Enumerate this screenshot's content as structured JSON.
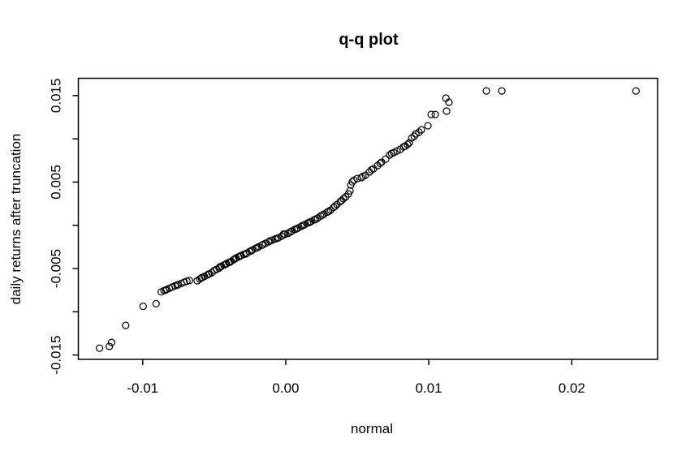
{
  "figure": {
    "background": "#ffffff",
    "foreground": "#000000"
  },
  "chart_data": {
    "type": "scatter",
    "title": "q-q plot",
    "xlabel": "normal",
    "ylabel": "daily returns after truncation",
    "xlim": [
      -0.0145,
      0.026
    ],
    "ylim": [
      -0.0155,
      0.017
    ],
    "grid": false,
    "marker": {
      "style": "open-circle",
      "stroke": "#000000",
      "fill": "none",
      "radius_px": 4
    },
    "x_ticks": [
      {
        "value": -0.01,
        "label": "-0.01"
      },
      {
        "value": 0.0,
        "label": "0.00"
      },
      {
        "value": 0.01,
        "label": "0.01"
      },
      {
        "value": 0.02,
        "label": "0.02"
      }
    ],
    "y_ticks": [
      {
        "value": 0.015,
        "label": "0.015"
      },
      {
        "value": 0.01,
        "label": ""
      },
      {
        "value": 0.005,
        "label": "0.005"
      },
      {
        "value": 0.0,
        "label": ""
      },
      {
        "value": -0.005,
        "label": "-0.005"
      },
      {
        "value": -0.01,
        "label": ""
      },
      {
        "value": -0.015,
        "label": "-0.015"
      }
    ],
    "points": [
      [
        -0.01302,
        -0.01421
      ],
      [
        -0.01233,
        -0.014
      ],
      [
        -0.01218,
        -0.01354
      ],
      [
        -0.01119,
        -0.01157
      ],
      [
        -0.00997,
        -0.00937
      ],
      [
        -0.00906,
        -0.00907
      ],
      [
        -0.0087,
        -0.0077
      ],
      [
        -0.00851,
        -0.00756
      ],
      [
        -0.00832,
        -0.00742
      ],
      [
        -0.00813,
        -0.00728
      ],
      [
        -0.00794,
        -0.00714
      ],
      [
        -0.00774,
        -0.007
      ],
      [
        -0.00752,
        -0.00686
      ],
      [
        -0.00731,
        -0.00672
      ],
      [
        -0.0071,
        -0.00658
      ],
      [
        -0.00691,
        -0.00647
      ],
      [
        -0.00673,
        -0.00639
      ],
      [
        -0.0084,
        -0.00748
      ],
      [
        -0.0076,
        -0.00692
      ],
      [
        -0.00619,
        -0.00641
      ],
      [
        -0.00601,
        -0.00621
      ],
      [
        -0.00585,
        -0.00604
      ],
      [
        -0.00569,
        -0.00591
      ],
      [
        -0.00551,
        -0.00576
      ],
      [
        -0.00534,
        -0.00561
      ],
      [
        -0.00517,
        -0.00547
      ],
      [
        -0.0059,
        -0.0061
      ],
      [
        -0.0054,
        -0.00565
      ],
      [
        -0.005,
        -0.00522
      ],
      [
        -0.00483,
        -0.00509
      ],
      [
        -0.00466,
        -0.00495
      ],
      [
        -0.00449,
        -0.00473
      ],
      [
        -0.00432,
        -0.00459
      ],
      [
        -0.00415,
        -0.00444
      ],
      [
        -0.00398,
        -0.0043
      ],
      [
        -0.00381,
        -0.00416
      ],
      [
        -0.00364,
        -0.00396
      ],
      [
        -0.00347,
        -0.00378
      ],
      [
        -0.0033,
        -0.00364
      ],
      [
        -0.00313,
        -0.0035
      ],
      [
        -0.00293,
        -0.00336
      ],
      [
        -0.00273,
        -0.00322
      ],
      [
        -0.00253,
        -0.00303
      ],
      [
        -0.00233,
        -0.00285
      ],
      [
        -0.0021,
        -0.00266
      ],
      [
        -0.00188,
        -0.00247
      ],
      [
        -0.00165,
        -0.00228
      ],
      [
        -0.00142,
        -0.00209
      ],
      [
        -0.0012,
        -0.00191
      ],
      [
        -0.00097,
        -0.00172
      ],
      [
        -0.00074,
        -0.00158
      ],
      [
        -0.00051,
        -0.00144
      ],
      [
        -0.00028,
        -0.00125
      ],
      [
        -6e-05,
        -0.00106
      ],
      [
        0.00017,
        -0.00092
      ],
      [
        0.0004,
        -0.00068
      ],
      [
        0.00062,
        -0.00049
      ],
      [
        0.00085,
        -0.00031
      ],
      [
        0.00108,
        -0.00012
      ],
      [
        0.00131,
        7e-05
      ],
      [
        0.00153,
        0.00026
      ],
      [
        0.00176,
        0.00044
      ],
      [
        0.00199,
        0.00063
      ],
      [
        0.00222,
        0.00082
      ],
      [
        0.00244,
        0.00106
      ],
      [
        0.00267,
        0.00129
      ],
      [
        0.0029,
        0.00152
      ],
      [
        0.00313,
        0.00175
      ],
      [
        0.00335,
        0.00208
      ],
      [
        0.00358,
        0.00241
      ],
      [
        0.00381,
        0.00274
      ],
      [
        0.00403,
        0.00307
      ],
      [
        0.0042,
        0.0033
      ],
      [
        0.00438,
        0.00363
      ],
      [
        0.00449,
        0.00399
      ],
      [
        0.00455,
        0.00466
      ],
      [
        0.00477,
        0.00522
      ],
      [
        0.005,
        0.00541
      ],
      [
        0.00528,
        0.00551
      ],
      [
        0.00557,
        0.00579
      ],
      [
        0.00585,
        0.00616
      ],
      [
        0.00614,
        0.00654
      ],
      [
        0.00642,
        0.00691
      ],
      [
        0.0067,
        0.00729
      ],
      [
        0.00699,
        0.00766
      ],
      [
        0.00727,
        0.00813
      ],
      [
        0.00756,
        0.00841
      ],
      [
        0.00778,
        0.0086
      ],
      [
        0.00801,
        0.00879
      ],
      [
        0.00824,
        0.00907
      ],
      [
        0.00835,
        0.00916
      ],
      [
        0.00852,
        0.00935
      ],
      [
        0.00864,
        0.00954
      ],
      [
        0.00881,
        0.0101
      ],
      [
        0.00898,
        0.01029
      ],
      [
        0.00909,
        0.01057
      ],
      [
        0.00932,
        0.01076
      ],
      [
        0.00949,
        0.01104
      ],
      [
        0.00994,
        0.01151
      ],
      [
        0.01017,
        0.01282
      ],
      [
        0.01045,
        0.01282
      ],
      [
        0.01125,
        0.0132
      ],
      [
        0.0112,
        0.0147
      ],
      [
        0.01141,
        0.01423
      ],
      [
        0.01403,
        0.01554
      ],
      [
        0.01511,
        0.01554
      ],
      [
        0.02449,
        0.01554
      ],
      [
        -0.0046,
        -0.00481
      ],
      [
        -0.0042,
        -0.00452
      ],
      [
        -0.0039,
        -0.00424
      ],
      [
        -0.00356,
        -0.00389
      ],
      [
        -0.0032,
        -0.00357
      ],
      [
        -0.0028,
        -0.00331
      ],
      [
        -0.0024,
        -0.00295
      ],
      [
        -0.002,
        -0.00259
      ],
      [
        -0.0016,
        -0.00223
      ],
      [
        -0.0011,
        -0.00181
      ],
      [
        -0.0006,
        -0.00151
      ],
      [
        -0.00015,
        -0.00101
      ],
      [
        0.0003,
        -0.00079
      ],
      [
        0.00075,
        -0.00041
      ],
      [
        0.0012,
        -1e-05
      ],
      [
        0.00165,
        0.00034
      ],
      [
        0.0021,
        0.00071
      ],
      [
        0.00255,
        0.00117
      ],
      [
        0.003,
        0.00161
      ],
      [
        0.00345,
        0.00221
      ],
      [
        0.0039,
        0.00286
      ],
      [
        0.00465,
        0.00501
      ],
      [
        0.0054,
        0.00566
      ],
      [
        0.006,
        0.00641
      ],
      [
        0.0066,
        0.00716
      ],
      [
        0.0074,
        0.00831
      ]
    ]
  }
}
